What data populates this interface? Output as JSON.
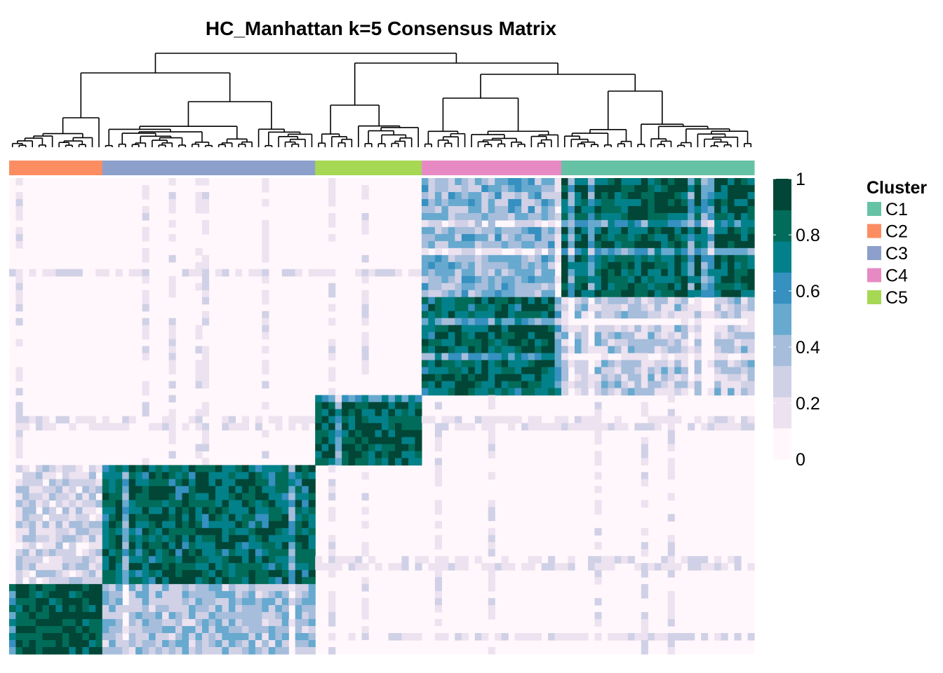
{
  "chart_data": {
    "type": "heatmap",
    "title": "HC_Manhattan k=5 Consensus Matrix",
    "value_range": [
      0,
      1
    ],
    "color_scale": {
      "ticks": [
        "1",
        "0.8",
        "0.6",
        "0.4",
        "0.2",
        "0"
      ],
      "colors": [
        "#fff7fb",
        "#ece2f0",
        "#d0d1e6",
        "#a6bddb",
        "#67a9cf",
        "#3690c0",
        "#02818a",
        "#016c59",
        "#014636"
      ]
    },
    "legend": {
      "title": "Cluster",
      "placement": "right",
      "entries": [
        {
          "label": "C1",
          "color": "#66c2a5"
        },
        {
          "label": "C2",
          "color": "#fc8d62"
        },
        {
          "label": "C3",
          "color": "#8da0cb"
        },
        {
          "label": "C4",
          "color": "#e78ac3"
        },
        {
          "label": "C5",
          "color": "#a6d854"
        }
      ]
    },
    "column_order": [
      {
        "cluster": "C2",
        "n": 14
      },
      {
        "cluster": "C3",
        "n": 32
      },
      {
        "cluster": "C5",
        "n": 16
      },
      {
        "cluster": "C4",
        "n": 21
      },
      {
        "cluster": "C1",
        "n": 29
      }
    ],
    "row_order": [
      {
        "cluster": "C1",
        "n": 17
      },
      {
        "cluster": "C4",
        "n": 14
      },
      {
        "cluster": "C5",
        "n": 10
      },
      {
        "cluster": "C3",
        "n": 17
      },
      {
        "cluster": "C2",
        "n": 10
      }
    ],
    "blocks": [
      {
        "row": "C1",
        "col": "C1",
        "value": 0.85
      },
      {
        "row": "C1",
        "col": "C4",
        "value": 0.42
      },
      {
        "row": "C4",
        "col": "C4",
        "value": 0.83
      },
      {
        "row": "C4",
        "col": "C1",
        "value": 0.3
      },
      {
        "row": "C5",
        "col": "C5",
        "value": 0.86
      },
      {
        "row": "C3",
        "col": "C3",
        "value": 0.82
      },
      {
        "row": "C3",
        "col": "C2",
        "value": 0.25
      },
      {
        "row": "C2",
        "col": "C2",
        "value": 0.92
      },
      {
        "row": "C2",
        "col": "C3",
        "value": 0.38
      }
    ],
    "background_value": 0.02
  }
}
